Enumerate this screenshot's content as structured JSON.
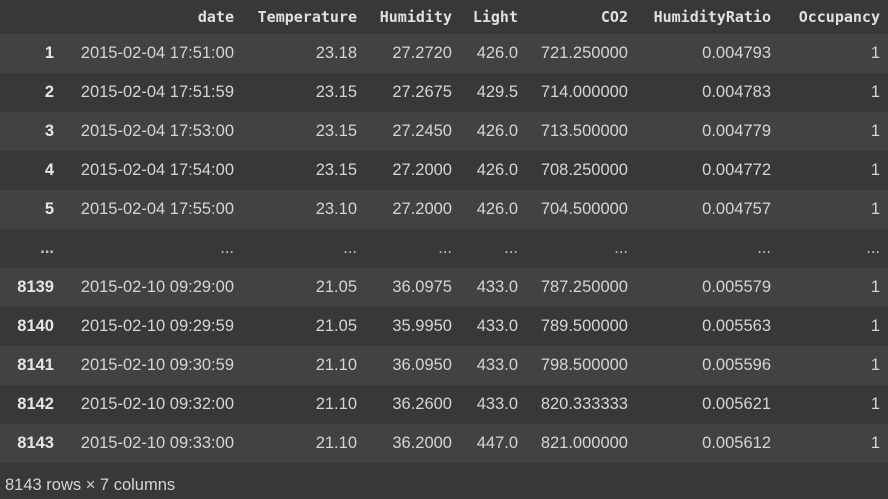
{
  "table": {
    "columns": [
      "date",
      "Temperature",
      "Humidity",
      "Light",
      "CO2",
      "HumidityRatio",
      "Occupancy"
    ],
    "rows": [
      {
        "index": "1",
        "cells": [
          "2015-02-04 17:51:00",
          "23.18",
          "27.2720",
          "426.0",
          "721.250000",
          "0.004793",
          "1"
        ]
      },
      {
        "index": "2",
        "cells": [
          "2015-02-04 17:51:59",
          "23.15",
          "27.2675",
          "429.5",
          "714.000000",
          "0.004783",
          "1"
        ]
      },
      {
        "index": "3",
        "cells": [
          "2015-02-04 17:53:00",
          "23.15",
          "27.2450",
          "426.0",
          "713.500000",
          "0.004779",
          "1"
        ]
      },
      {
        "index": "4",
        "cells": [
          "2015-02-04 17:54:00",
          "23.15",
          "27.2000",
          "426.0",
          "708.250000",
          "0.004772",
          "1"
        ]
      },
      {
        "index": "5",
        "cells": [
          "2015-02-04 17:55:00",
          "23.10",
          "27.2000",
          "426.0",
          "704.500000",
          "0.004757",
          "1"
        ]
      },
      {
        "index": "...",
        "cells": [
          "...",
          "...",
          "...",
          "...",
          "...",
          "...",
          "..."
        ]
      },
      {
        "index": "8139",
        "cells": [
          "2015-02-10 09:29:00",
          "21.05",
          "36.0975",
          "433.0",
          "787.250000",
          "0.005579",
          "1"
        ]
      },
      {
        "index": "8140",
        "cells": [
          "2015-02-10 09:29:59",
          "21.05",
          "35.9950",
          "433.0",
          "789.500000",
          "0.005563",
          "1"
        ]
      },
      {
        "index": "8141",
        "cells": [
          "2015-02-10 09:30:59",
          "21.10",
          "36.0950",
          "433.0",
          "798.500000",
          "0.005596",
          "1"
        ]
      },
      {
        "index": "8142",
        "cells": [
          "2015-02-10 09:32:00",
          "21.10",
          "36.2600",
          "433.0",
          "820.333333",
          "0.005621",
          "1"
        ]
      },
      {
        "index": "8143",
        "cells": [
          "2015-02-10 09:33:00",
          "21.10",
          "36.2000",
          "447.0",
          "821.000000",
          "0.005612",
          "1"
        ]
      }
    ]
  },
  "summary": "8143 rows × 7 columns",
  "colors": {
    "background": "#383838",
    "stripe": "#424242",
    "text": "#d5d5d5"
  }
}
